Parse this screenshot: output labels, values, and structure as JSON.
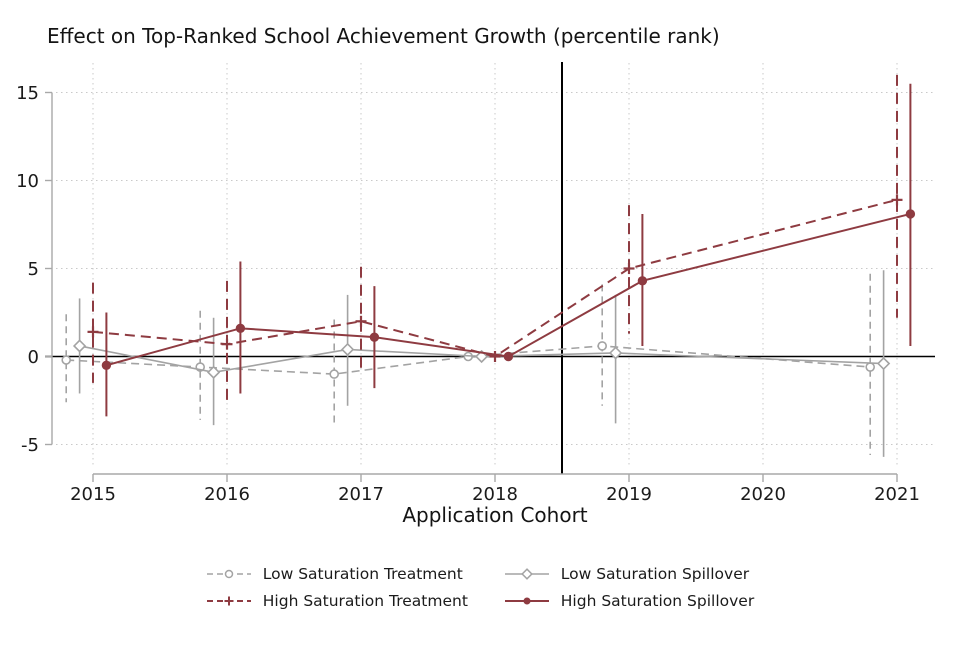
{
  "title": "Effect on Top-Ranked School Achievement Growth (percentile rank)",
  "xlabel": "Application Cohort",
  "colors": {
    "low_saturation": "#a3a3a3",
    "high_saturation": "#8e3b41",
    "axis": "#a8a8a8",
    "grid": "#c9c9c9",
    "reference_line": "#000000",
    "zero_line": "#000000",
    "text": "#1b1b1b"
  },
  "chart_data": {
    "type": "line",
    "title": "Effect on Top-Ranked School Achievement Growth (percentile rank)",
    "xlabel": "Application Cohort",
    "ylabel": "",
    "x_tick_labels": [
      "2015",
      "2016",
      "2017",
      "2018",
      "2019",
      "2020",
      "2021"
    ],
    "x_tick_values": [
      2015,
      2016,
      2017,
      2018,
      2019,
      2020,
      2021
    ],
    "y_ticks": [
      -5,
      0,
      5,
      10,
      15
    ],
    "ylim": [
      -6.6,
      16.8
    ],
    "grid": "dotted horizontal and vertical",
    "reference_line_x": 2018.5,
    "zero_line_y": 0,
    "legend_position": "bottom",
    "note_2018": "reference cohort, all effects normalized to 0 with no confidence interval",
    "note_2020": "no estimate plotted for 2020 cohort; lines connect 2019 to 2021",
    "series": [
      {
        "name": "Low Saturation Treatment",
        "color": "#a3a3a3",
        "line_style": "dashed",
        "marker": "open-circle",
        "x_offset_years": -0.2,
        "x": [
          2015,
          2016,
          2017,
          2018,
          2019,
          2021
        ],
        "y": [
          -0.2,
          -0.6,
          -1.0,
          0,
          0.6,
          -0.6
        ],
        "ci_low": [
          -2.6,
          -3.6,
          -4.0,
          null,
          -2.8,
          -5.6
        ],
        "ci_high": [
          2.4,
          2.6,
          2.1,
          null,
          4.1,
          4.7
        ]
      },
      {
        "name": "Low Saturation Spillover",
        "color": "#a3a3a3",
        "line_style": "solid",
        "marker": "open-diamond",
        "x_offset_years": -0.1,
        "x": [
          2015,
          2016,
          2017,
          2018,
          2019,
          2021
        ],
        "y": [
          0.6,
          -0.9,
          0.4,
          0,
          0.2,
          -0.4
        ],
        "ci_low": [
          -2.1,
          -3.9,
          -2.8,
          null,
          -3.8,
          -5.7
        ],
        "ci_high": [
          3.3,
          2.2,
          3.5,
          null,
          3.5,
          4.9
        ]
      },
      {
        "name": "High Saturation Treatment",
        "color": "#8e3b41",
        "line_style": "dashed",
        "marker": "plus",
        "x_offset_years": 0,
        "x": [
          2015,
          2016,
          2017,
          2018,
          2019,
          2021
        ],
        "y": [
          1.4,
          0.7,
          2.0,
          0,
          5.0,
          8.9
        ],
        "ci_low": [
          -1.5,
          -2.8,
          -1.0,
          null,
          1.3,
          2.2
        ],
        "ci_high": [
          4.2,
          4.3,
          5.1,
          null,
          8.6,
          16.0
        ]
      },
      {
        "name": "High Saturation Spillover",
        "color": "#8e3b41",
        "line_style": "solid",
        "marker": "filled-circle",
        "x_offset_years": 0.1,
        "x": [
          2015,
          2016,
          2017,
          2018,
          2019,
          2021
        ],
        "y": [
          -0.5,
          1.6,
          1.1,
          0,
          4.3,
          8.1
        ],
        "ci_low": [
          -3.4,
          -2.1,
          -1.8,
          null,
          0.6,
          0.6
        ],
        "ci_high": [
          2.5,
          5.4,
          4.0,
          null,
          8.1,
          15.5
        ]
      }
    ]
  }
}
